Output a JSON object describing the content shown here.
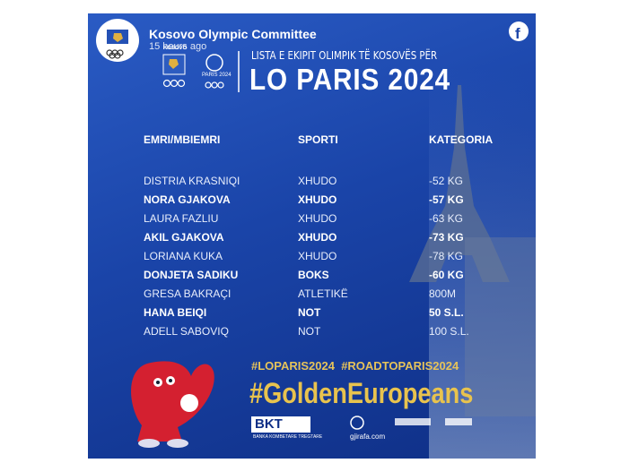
{
  "post": {
    "author": "Kosovo Olympic Committee",
    "time": "15 hours ago"
  },
  "image": {
    "logo_text": "KOSOVO",
    "paris_logo_text": "PARIS 2024",
    "subtitle": "LISTA E EKIPIT OLIMPIK TË KOSOVËS PËR",
    "title": "LO PARIS 2024",
    "table": {
      "headers": [
        "EMRI/MBIEMRI",
        "SPORTI",
        "KATEGORIA"
      ],
      "rows": [
        {
          "cells": [
            "DISTRIA KRASNIQI",
            "XHUDO",
            "-52 KG"
          ],
          "bold": false
        },
        {
          "cells": [
            "NORA GJAKOVA",
            "XHUDO",
            "-57 KG"
          ],
          "bold": true
        },
        {
          "cells": [
            "LAURA FAZLIU",
            "XHUDO",
            "-63 KG"
          ],
          "bold": false
        },
        {
          "cells": [
            "AKIL GJAKOVA",
            "XHUDO",
            "-73 KG"
          ],
          "bold": true
        },
        {
          "cells": [
            "LORIANA KUKA",
            "XHUDO",
            "-78 KG"
          ],
          "bold": false
        },
        {
          "cells": [
            "DONJETA SADIKU",
            "BOKS",
            "-60 KG"
          ],
          "bold": true
        },
        {
          "cells": [
            "GRESA BAKRAÇI",
            "ATLETIKË",
            "800M"
          ],
          "bold": false
        },
        {
          "cells": [
            "HANA BEIQI",
            "NOT",
            "50 S.L."
          ],
          "bold": true
        },
        {
          "cells": [
            "ADELL SABOVIQ",
            "NOT",
            "100 S.L."
          ],
          "bold": false
        }
      ]
    },
    "hashtags": "#LOPARIS2024  #ROADTOPARIS2024",
    "slogan": "#GoldenEuropeans",
    "sponsors": [
      "BKT",
      "BANKA KOMBETARE TREGTARE",
      "gjirafa.com"
    ]
  }
}
